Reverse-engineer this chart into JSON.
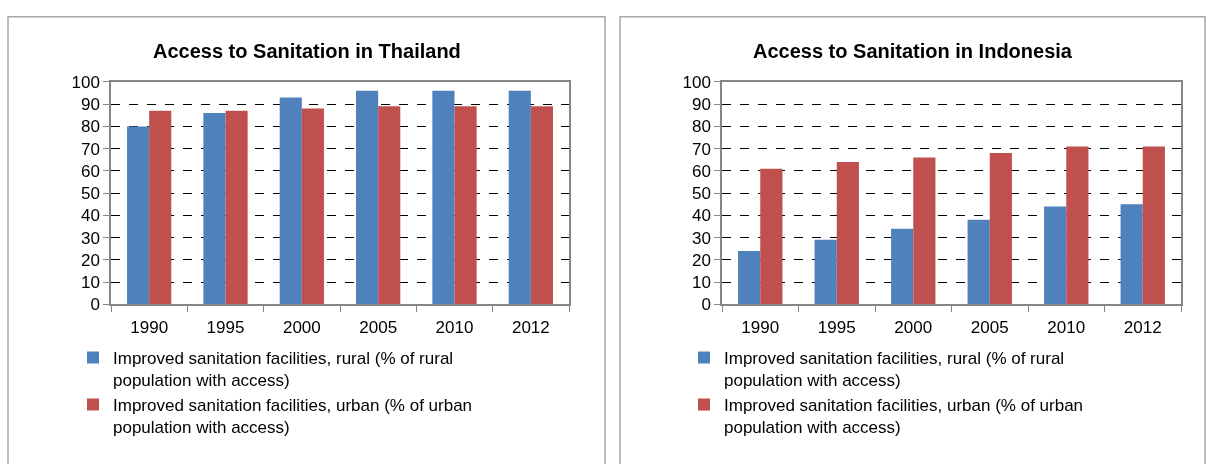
{
  "chart_data": [
    {
      "type": "bar",
      "title": "Access to Sanitation in Thailand",
      "categories": [
        "1990",
        "1995",
        "2000",
        "2005",
        "2010",
        "2012"
      ],
      "series": [
        {
          "name": "Improved sanitation facilities, rural (% of rural population with access)",
          "color": "#4f81bd",
          "values": [
            80,
            86,
            93,
            96,
            96,
            96
          ]
        },
        {
          "name": "Improved sanitation facilities, urban (% of urban population with access)",
          "color": "#c0504d",
          "values": [
            87,
            87,
            88,
            89,
            89,
            89
          ]
        }
      ],
      "ylim": [
        0,
        100
      ],
      "yticks": [
        0,
        10,
        20,
        30,
        40,
        50,
        60,
        70,
        80,
        90,
        100
      ],
      "grid": "y",
      "legend": "bottom"
    },
    {
      "type": "bar",
      "title": "Access to Sanitation in Indonesia",
      "categories": [
        "1990",
        "1995",
        "2000",
        "2005",
        "2010",
        "2012"
      ],
      "series": [
        {
          "name": "Improved sanitation facilities, rural (% of rural population with access)",
          "color": "#4f81bd",
          "values": [
            24,
            29,
            34,
            38,
            44,
            45
          ]
        },
        {
          "name": "Improved sanitation facilities, urban (% of urban population with access)",
          "color": "#c0504d",
          "values": [
            61,
            64,
            66,
            68,
            71,
            71
          ]
        }
      ],
      "ylim": [
        0,
        100
      ],
      "yticks": [
        0,
        10,
        20,
        30,
        40,
        50,
        60,
        70,
        80,
        90,
        100
      ],
      "grid": "y",
      "legend": "bottom"
    }
  ]
}
